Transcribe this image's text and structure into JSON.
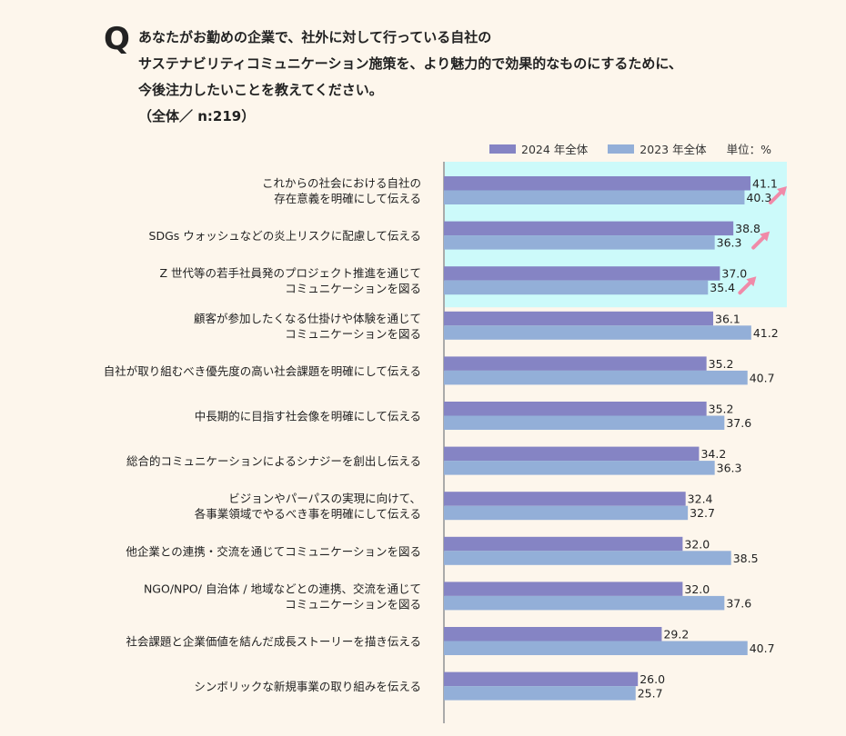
{
  "question": {
    "mark": "Q",
    "lines": [
      "あなたがお勤めの企業で、社外に対して行っている自社の",
      "サステナビリティコミュニケーション施策を、より魅力的で効果的なものにするために、",
      "今後注力したいことを教えてください。",
      "（全体／ n:219）"
    ]
  },
  "legend": {
    "series_2024": "2024 年全体",
    "series_2023": "2023 年全体",
    "unit": "単位：%"
  },
  "colors": {
    "series_2024": "#8584c4",
    "series_2023": "#93afd8",
    "highlight": "#ccfafa",
    "arrow": "#f08aa8",
    "axis": "#aaaaaa",
    "background": "#fdf6ec"
  },
  "chart_data": {
    "type": "bar",
    "orientation": "horizontal",
    "categories": [
      "これからの社会における自社の\n存在意義を明確にして伝える",
      "SDGs ウォッシュなどの炎上リスクに配慮して伝える",
      "Z 世代等の若手社員発のプロジェクト推進を通じて\nコミュニケーションを図る",
      "顧客が参加したくなる仕掛けや体験を通じて\nコミュニケーションを図る",
      "自社が取り組むべき優先度の高い社会課題を明確にして伝える",
      "中長期的に目指す社会像を明確にして伝える",
      "総合的コミュニケーションによるシナジーを創出し伝える",
      "ビジョンやパーパスの実現に向けて、\n各事業領域でやるべき事を明確にして伝える",
      "他企業との連携・交流を通じてコミュニケーションを図る",
      "NGO/NPO/ 自治体 / 地域などとの連携、交流を通じて\nコミュニケーションを図る",
      "社会課題と企業価値を結んだ成長ストーリーを描き伝える",
      "シンボリックな新規事業の取り組みを伝える"
    ],
    "series": [
      {
        "name": "2024 年全体",
        "values": [
          41.1,
          38.8,
          37.0,
          36.1,
          35.2,
          35.2,
          34.2,
          32.4,
          32.0,
          32.0,
          29.2,
          26.0
        ]
      },
      {
        "name": "2023 年全体",
        "values": [
          40.3,
          36.3,
          35.4,
          41.2,
          40.7,
          37.6,
          36.3,
          32.7,
          38.5,
          37.6,
          40.7,
          25.7
        ]
      }
    ],
    "value_labels": {
      "series_2024": [
        "41.1",
        "38.8",
        "37.0",
        "36.1",
        "35.2",
        "35.2",
        "34.2",
        "32.4",
        "32.0",
        "32.0",
        "29.2",
        "26.0"
      ],
      "series_2023": [
        "40.3",
        "36.3",
        "35.4",
        "41.2",
        "40.7",
        "37.6",
        "36.3",
        "32.7",
        "38.5",
        "37.6",
        "40.7",
        "25.7"
      ]
    },
    "highlighted_categories": [
      0,
      1,
      2
    ],
    "increase_arrows_on": [
      0,
      1,
      2
    ],
    "xlim": [
      0,
      45
    ],
    "grid": false,
    "legend_position": "top-right"
  }
}
